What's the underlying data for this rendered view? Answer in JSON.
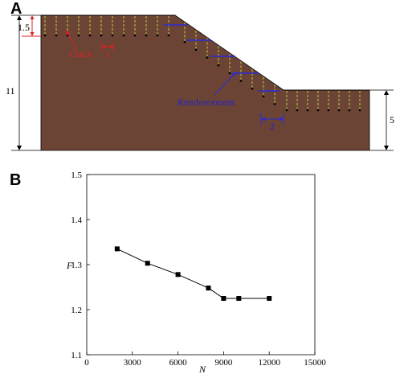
{
  "panel_a": {
    "label": "A",
    "dim_left_top": "1.5",
    "dim_left_height": "11",
    "dim_right_height": "5",
    "crack_label": "Crack",
    "crack_spacing": "1",
    "reinforcement_label": "Reinforcement",
    "reinforcement_spacing": "2",
    "colors": {
      "soil": "#6b4436",
      "crack": "#b6c23c",
      "reinforcement": "#2a2ad6",
      "dimension_red": "#e02020"
    }
  },
  "panel_b": {
    "label": "B"
  },
  "chart_data": {
    "type": "line",
    "xlabel": "N",
    "ylabel": "F",
    "xlim": [
      0,
      15000
    ],
    "ylim": [
      1.1,
      1.5
    ],
    "xticks": [
      0,
      3000,
      6000,
      9000,
      12000,
      15000
    ],
    "yticks": [
      1.1,
      1.2,
      1.3,
      1.4,
      1.5
    ],
    "xtick_labels": [
      "0",
      "3000",
      "6000",
      "9000",
      "12000",
      "15000"
    ],
    "ytick_labels": [
      "1.1",
      "1.2",
      "1.3",
      "1.4",
      "1.5"
    ],
    "ylabel_rendered": "F 1.3",
    "grid": false,
    "series": [
      {
        "x": [
          2000,
          4000,
          6000,
          8000,
          9000,
          10000,
          12000
        ],
        "y": [
          1.335,
          1.303,
          1.278,
          1.248,
          1.225,
          1.225,
          1.225
        ]
      }
    ]
  }
}
